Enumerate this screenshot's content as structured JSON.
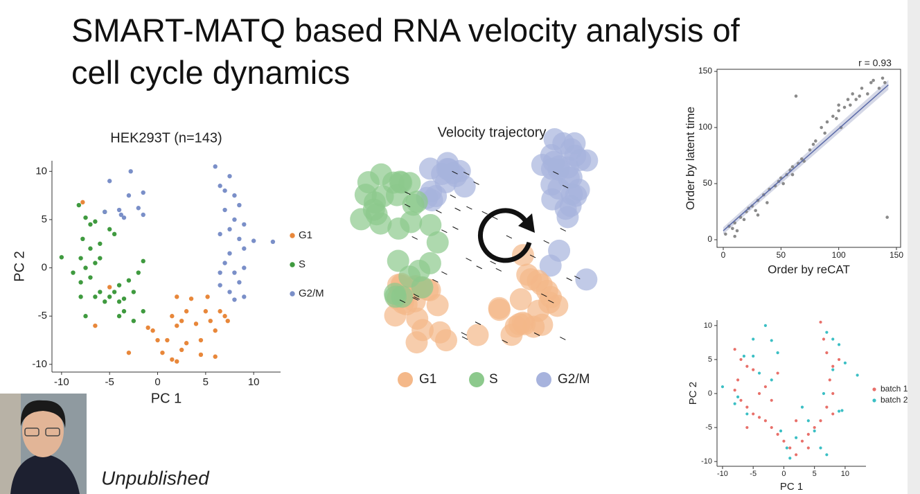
{
  "title_line_1": "SMART-MATQ based RNA velocity analysis of",
  "title_line_2": "cell cycle dynamics",
  "footer_text": "Unpublished",
  "chart_data": [
    {
      "type": "scatter",
      "title": "HEK293T (n=143)",
      "x_label": "PC 1",
      "y_label": "PC 2",
      "xlim": [
        -11,
        12.8
      ],
      "ylim": [
        -10.8,
        11.1
      ],
      "xticks": [
        -10,
        -5,
        0,
        5,
        10
      ],
      "yticks": [
        -10,
        -5,
        0,
        5,
        10
      ],
      "series": [
        {
          "name": "G1",
          "color": "#e8873a",
          "x": [
            -7.8,
            -5,
            -6.5,
            -3,
            -1,
            -0.5,
            0,
            0.5,
            1,
            1.5,
            2,
            2.5,
            3,
            2.5,
            3,
            2,
            3.5,
            4,
            4.5,
            5,
            5.2,
            5.5,
            6,
            6.5,
            7,
            7.3,
            6,
            4.5,
            1.5,
            2
          ],
          "values": [
            6.8,
            -2,
            -6,
            -8.8,
            -6.2,
            -6.5,
            -7.5,
            -8.8,
            -7.5,
            -9.5,
            -9.7,
            -8.5,
            -7.8,
            -5.5,
            -4.5,
            -3,
            -3.2,
            -5.8,
            -7.5,
            -4.5,
            -3,
            -5.5,
            -6.5,
            -4.5,
            -5,
            -5.5,
            -9.2,
            -9,
            -5,
            -6
          ]
        },
        {
          "name": "S",
          "color": "#3f9a3f",
          "x": [
            -8.2,
            -10,
            -7.5,
            -7.8,
            -7,
            -6.5,
            -5.5,
            -5,
            -4.5,
            -6,
            -7,
            -8,
            -7.5,
            -8,
            -7,
            -6.5,
            -6,
            -5.5,
            -5,
            -4.5,
            -4,
            -3.5,
            -3,
            -4,
            -3.5,
            -4,
            -2.5,
            -1.5,
            -2,
            -1.5,
            -7.5,
            -8,
            -6.5,
            -2.5,
            -8.8,
            -6
          ],
          "values": [
            6.5,
            1.1,
            5.2,
            3,
            4.5,
            4.8,
            5.8,
            4,
            3.5,
            2.5,
            2,
            1,
            0,
            -1.5,
            -1,
            0.5,
            -2.5,
            -3.5,
            -3,
            -2.5,
            -3.5,
            -3.2,
            -1.3,
            -1.8,
            -4.5,
            -5,
            -5.5,
            -4.5,
            -0.5,
            0.7,
            -5,
            -3,
            -3,
            -2.5,
            -0.5,
            1
          ]
        },
        {
          "name": "G2/M",
          "color": "#7a8fc8",
          "x": [
            -5,
            -3,
            -2.8,
            -4,
            -5.5,
            -3.5,
            -2,
            -1.5,
            -1.5,
            -3.8,
            6,
            7.5,
            7,
            6.5,
            8,
            8.5,
            7,
            8,
            9,
            7.5,
            6.5,
            8.5,
            9,
            7.5,
            10,
            12,
            7,
            6.5,
            8,
            9,
            8.5,
            7.5,
            9,
            8,
            6.5
          ],
          "values": [
            9,
            7.5,
            10,
            6,
            5.8,
            5.2,
            6.2,
            7.8,
            5.5,
            5.5,
            10.5,
            9.5,
            8,
            8.5,
            7.5,
            6.5,
            6,
            5,
            4.5,
            4,
            3.5,
            3,
            2,
            1.5,
            2.8,
            2.7,
            0.5,
            -0.5,
            -0.5,
            0,
            -1.5,
            -2.5,
            -3,
            -3.3,
            -1.8
          ]
        }
      ]
    },
    {
      "type": "embedding",
      "title": "Velocity trajectory",
      "series": [
        {
          "name": "G1",
          "color": "#f4b889"
        },
        {
          "name": "S",
          "color": "#8cc98c"
        },
        {
          "name": "G2/M",
          "color": "#a7b3dd"
        }
      ]
    },
    {
      "type": "scatter",
      "annotation": "r = 0.93",
      "x_label": "Order by reCAT",
      "y_label": "Order by latent time",
      "xlim": [
        -5.4,
        153.6
      ],
      "ylim": [
        -6.8,
        151.9
      ],
      "xticks": [
        0,
        50,
        100,
        150
      ],
      "yticks": [
        0,
        50,
        100,
        150
      ],
      "box": true,
      "series": [
        {
          "color": "#8a8a8a",
          "x": [
            2,
            5,
            8,
            10,
            12,
            15,
            18,
            20,
            22,
            25,
            28,
            30,
            35,
            38,
            40,
            45,
            48,
            50,
            52,
            55,
            58,
            60,
            63,
            65,
            68,
            70,
            75,
            78,
            80,
            85,
            88,
            90,
            95,
            98,
            100,
            102,
            105,
            108,
            110,
            112,
            115,
            118,
            120,
            125,
            128,
            130,
            135,
            138,
            140,
            142,
            10,
            30,
            60,
            100
          ],
          "values": [
            5,
            12,
            10,
            15,
            8,
            20,
            18,
            25,
            28,
            30,
            26,
            35,
            40,
            33,
            45,
            48,
            52,
            55,
            50,
            58,
            62,
            65,
            128,
            68,
            72,
            70,
            80,
            85,
            88,
            100,
            95,
            105,
            110,
            108,
            115,
            100,
            118,
            125,
            120,
            130,
            125,
            128,
            135,
            130,
            140,
            142,
            135,
            144,
            140,
            20,
            3,
            22,
            58,
            120
          ]
        }
      ],
      "fit": {
        "color": "#5a6aa8",
        "x": [
          0,
          143
        ],
        "values": [
          8,
          138
        ]
      }
    },
    {
      "type": "scatter",
      "x_label": "PC 1",
      "y_label": "PC 2",
      "xlim": [
        -10.9,
        13.4
      ],
      "ylim": [
        -10.7,
        10.8
      ],
      "xticks": [
        -10,
        -5,
        0,
        5,
        10
      ],
      "yticks": [
        -10,
        -5,
        0,
        5,
        10
      ],
      "series": [
        {
          "name": "batch 1",
          "color": "#e8706a",
          "x": [
            -8,
            -7,
            -6,
            -5,
            -7.5,
            -8,
            -7,
            -6,
            -5,
            -4,
            -3,
            -2,
            -1,
            0,
            1,
            2,
            3,
            4,
            5,
            6,
            7,
            8,
            7.5,
            8,
            7,
            6.5,
            6,
            -4,
            -3,
            -2,
            -6,
            2,
            4,
            -1,
            9,
            8
          ],
          "values": [
            6.5,
            5,
            4,
            3.5,
            2,
            0.5,
            -1,
            -2,
            -3,
            -3.5,
            -4,
            -5,
            -6,
            -7,
            -8,
            -9,
            -7,
            -6,
            -5,
            -4,
            -2,
            0,
            2,
            4,
            6,
            8,
            10.5,
            0,
            1,
            -1,
            -5,
            -4,
            -8,
            3,
            5,
            -3
          ]
        },
        {
          "name": "batch 2",
          "color": "#3bbfc4",
          "x": [
            -10,
            -7.5,
            -5,
            -3,
            -2,
            -1,
            -4,
            -6,
            -8,
            -0.5,
            1,
            0.5,
            3,
            5,
            6,
            7,
            8,
            9,
            9.5,
            10,
            7,
            8,
            12,
            6.5,
            -5,
            -2,
            2,
            4,
            9,
            -6.5
          ],
          "values": [
            1,
            -0.5,
            5.5,
            10,
            7.8,
            6,
            3,
            -3,
            -1.5,
            -5.5,
            -9.5,
            -8,
            -2,
            -5.5,
            -8,
            -9,
            3.5,
            7.2,
            -2.5,
            4.5,
            9,
            8,
            2.7,
            0,
            8,
            2,
            -6.5,
            -4,
            -2.6,
            5.5
          ]
        }
      ]
    }
  ]
}
